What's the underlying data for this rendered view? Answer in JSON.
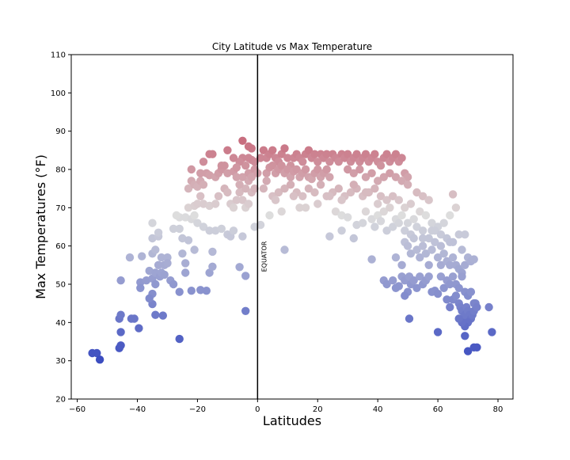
{
  "chart_data": {
    "type": "scatter",
    "title": "City Latitude vs Max Temperature",
    "xlabel": "Latitudes",
    "ylabel": "Max Temperatures (°F)",
    "xlim": [
      -62,
      85
    ],
    "ylim": [
      20,
      110
    ],
    "x_ticks": [
      -60,
      -40,
      -20,
      0,
      20,
      40,
      60,
      80
    ],
    "y_ticks": [
      20,
      30,
      40,
      50,
      60,
      70,
      80,
      90,
      100,
      110
    ],
    "x_tick_labels": [
      "−60",
      "−40",
      "−20",
      "0",
      "20",
      "40",
      "60",
      "80"
    ],
    "y_tick_labels": [
      "20",
      "30",
      "40",
      "50",
      "60",
      "70",
      "80",
      "90",
      "100",
      "110"
    ],
    "grid": false,
    "colormap": "coolwarm",
    "color_low": "#3b4cc0",
    "color_mid": "#dddddd",
    "color_high": "#b40426",
    "annotation": {
      "text": "EQUATOR",
      "x": 0
    },
    "vertical_line_color": "#000000",
    "points": [
      [
        -55,
        32
      ],
      [
        -53.5,
        32
      ],
      [
        -52.5,
        30.3
      ],
      [
        -46,
        33.3
      ],
      [
        -45.5,
        34
      ],
      [
        -46,
        41
      ],
      [
        -45.5,
        42
      ],
      [
        -45.5,
        37.5
      ],
      [
        -42,
        41
      ],
      [
        -41,
        41
      ],
      [
        -39.5,
        38.5
      ],
      [
        -34,
        42
      ],
      [
        -31.5,
        41.8
      ],
      [
        -35,
        44.8
      ],
      [
        -35,
        47.5
      ],
      [
        -36,
        46.3
      ],
      [
        -26,
        35.7
      ],
      [
        -45.5,
        51
      ],
      [
        -42.5,
        57
      ],
      [
        -39,
        50.5
      ],
      [
        -39,
        49
      ],
      [
        -38.5,
        57.3
      ],
      [
        -37,
        51
      ],
      [
        -36,
        53.5
      ],
      [
        -35,
        51.5
      ],
      [
        -34,
        50
      ],
      [
        -34,
        53
      ],
      [
        -33,
        55
      ],
      [
        -32.5,
        52
      ],
      [
        -31,
        55
      ],
      [
        -32,
        57
      ],
      [
        -32,
        53
      ],
      [
        -31,
        52.5
      ],
      [
        -30,
        57
      ],
      [
        -30,
        55.5
      ],
      [
        -29,
        51
      ],
      [
        -28,
        50
      ],
      [
        -26,
        48
      ],
      [
        -25,
        58
      ],
      [
        -24,
        55.5
      ],
      [
        -24,
        53
      ],
      [
        -22,
        48.3
      ],
      [
        -19,
        48.5
      ],
      [
        -17,
        48.3
      ],
      [
        -16,
        53
      ],
      [
        -15,
        54.6
      ],
      [
        -15,
        58.5
      ],
      [
        -21,
        59
      ],
      [
        -25,
        62
      ],
      [
        -23,
        61.5
      ],
      [
        -35,
        58
      ],
      [
        -34,
        59
      ],
      [
        -35,
        62
      ],
      [
        -33,
        62.5
      ],
      [
        -33,
        63.5
      ],
      [
        -35,
        66
      ],
      [
        -28,
        64.5
      ],
      [
        -26,
        64.5
      ],
      [
        -26,
        67.5
      ],
      [
        -27,
        68
      ],
      [
        -24,
        67.5
      ],
      [
        -22,
        67
      ],
      [
        -21,
        68
      ],
      [
        -20,
        66
      ],
      [
        -18,
        65
      ],
      [
        -16,
        64
      ],
      [
        -14,
        64
      ],
      [
        -12,
        64.5
      ],
      [
        -10,
        63
      ],
      [
        -9,
        62.5
      ],
      [
        -8,
        64
      ],
      [
        -5,
        62.5
      ],
      [
        -6,
        54.5
      ],
      [
        -4,
        52.2
      ],
      [
        -1,
        65
      ],
      [
        1,
        65.5
      ],
      [
        -4,
        43
      ],
      [
        -23,
        70
      ],
      [
        -21,
        70.5
      ],
      [
        -20,
        71
      ],
      [
        -19,
        73
      ],
      [
        -18,
        71
      ],
      [
        -16,
        70.5
      ],
      [
        -14,
        71
      ],
      [
        -13,
        73
      ],
      [
        -11,
        75
      ],
      [
        -10,
        74
      ],
      [
        -9,
        71
      ],
      [
        -8,
        70
      ],
      [
        -7,
        72
      ],
      [
        -6,
        74
      ],
      [
        -5,
        72
      ],
      [
        -4,
        70
      ],
      [
        -3,
        71
      ],
      [
        -2,
        74
      ],
      [
        -1,
        75
      ],
      [
        -3,
        77
      ],
      [
        -4,
        75
      ],
      [
        -23,
        75
      ],
      [
        -22,
        77
      ],
      [
        -21,
        76
      ],
      [
        -20,
        75.5
      ],
      [
        -19,
        77
      ],
      [
        -18,
        76
      ],
      [
        -17,
        79
      ],
      [
        -16,
        78.5
      ],
      [
        -14,
        78
      ],
      [
        -13,
        79
      ],
      [
        -12,
        80
      ],
      [
        -11,
        81
      ],
      [
        -10,
        79
      ],
      [
        -8,
        79.5
      ],
      [
        -7,
        78
      ],
      [
        -6,
        76
      ],
      [
        -5,
        78
      ],
      [
        -3,
        79
      ],
      [
        -2,
        78
      ],
      [
        -1,
        80
      ],
      [
        0,
        79
      ],
      [
        -1,
        82
      ],
      [
        -2,
        82.5
      ],
      [
        -3,
        83
      ],
      [
        -4,
        81
      ],
      [
        -5,
        83
      ],
      [
        -6,
        82
      ],
      [
        -7,
        80.5
      ],
      [
        -8,
        83
      ],
      [
        -10,
        85
      ],
      [
        -12,
        81
      ],
      [
        -15,
        84
      ],
      [
        -16,
        84
      ],
      [
        -18,
        82
      ],
      [
        -19,
        79
      ],
      [
        -22,
        80
      ],
      [
        -2,
        85.5
      ],
      [
        -3,
        86
      ],
      [
        -5,
        87.5
      ],
      [
        1,
        83
      ],
      [
        2,
        85
      ],
      [
        3,
        83
      ],
      [
        4,
        84
      ],
      [
        5,
        85
      ],
      [
        6,
        83
      ],
      [
        7,
        82
      ],
      [
        8,
        84
      ],
      [
        9,
        85.5
      ],
      [
        10,
        83
      ],
      [
        11,
        81
      ],
      [
        12,
        83
      ],
      [
        13,
        84
      ],
      [
        14,
        83
      ],
      [
        15,
        82
      ],
      [
        16,
        84
      ],
      [
        17,
        85
      ],
      [
        18,
        83
      ],
      [
        19,
        84
      ],
      [
        20,
        82
      ],
      [
        21,
        84
      ],
      [
        22,
        83
      ],
      [
        23,
        84
      ],
      [
        24,
        82
      ],
      [
        25,
        84
      ],
      [
        26,
        83
      ],
      [
        27,
        82
      ],
      [
        28,
        84
      ],
      [
        29,
        83
      ],
      [
        30,
        84
      ],
      [
        31,
        82
      ],
      [
        32,
        83
      ],
      [
        33,
        84
      ],
      [
        34,
        82
      ],
      [
        35,
        83
      ],
      [
        36,
        84
      ],
      [
        37,
        82
      ],
      [
        38,
        83
      ],
      [
        39,
        84
      ],
      [
        40,
        82
      ],
      [
        41,
        81
      ],
      [
        42,
        83
      ],
      [
        43,
        84
      ],
      [
        44,
        82
      ],
      [
        45,
        83
      ],
      [
        46,
        84
      ],
      [
        47,
        82
      ],
      [
        48,
        83
      ],
      [
        49,
        79
      ],
      [
        50,
        78
      ],
      [
        3,
        79
      ],
      [
        4,
        80.5
      ],
      [
        5,
        81
      ],
      [
        6,
        79
      ],
      [
        7,
        80
      ],
      [
        8,
        81
      ],
      [
        9,
        79
      ],
      [
        10,
        80
      ],
      [
        11,
        78
      ],
      [
        12,
        79.5
      ],
      [
        13,
        80
      ],
      [
        14,
        78
      ],
      [
        15,
        79
      ],
      [
        16,
        80
      ],
      [
        17,
        78
      ],
      [
        18,
        77.5
      ],
      [
        19,
        79
      ],
      [
        20,
        80
      ],
      [
        21,
        78
      ],
      [
        22,
        79
      ],
      [
        23,
        80
      ],
      [
        24,
        78
      ],
      [
        30,
        80
      ],
      [
        32,
        79
      ],
      [
        34,
        80
      ],
      [
        36,
        78
      ],
      [
        38,
        79
      ],
      [
        40,
        77
      ],
      [
        42,
        78
      ],
      [
        44,
        79
      ],
      [
        46,
        78
      ],
      [
        48,
        77
      ],
      [
        50,
        76
      ],
      [
        2,
        75
      ],
      [
        3,
        77
      ],
      [
        5,
        73
      ],
      [
        7,
        74
      ],
      [
        9,
        75
      ],
      [
        11,
        76
      ],
      [
        13,
        74
      ],
      [
        15,
        73
      ],
      [
        17,
        75
      ],
      [
        19,
        74
      ],
      [
        21,
        76
      ],
      [
        23,
        73
      ],
      [
        25,
        74
      ],
      [
        27,
        75
      ],
      [
        29,
        73
      ],
      [
        31,
        74
      ],
      [
        33,
        75
      ],
      [
        35,
        73
      ],
      [
        37,
        74
      ],
      [
        39,
        75
      ],
      [
        41,
        73
      ],
      [
        43,
        72
      ],
      [
        45,
        73
      ],
      [
        47,
        72
      ],
      [
        49,
        70
      ],
      [
        51,
        71
      ],
      [
        53,
        74
      ],
      [
        55,
        73
      ],
      [
        57,
        72
      ],
      [
        6,
        72
      ],
      [
        12,
        73
      ],
      [
        16,
        70
      ],
      [
        24,
        73
      ],
      [
        28,
        72
      ],
      [
        32,
        76
      ],
      [
        36,
        74
      ],
      [
        40,
        71
      ],
      [
        4,
        68
      ],
      [
        8,
        69
      ],
      [
        14,
        70
      ],
      [
        20,
        71
      ],
      [
        26,
        69
      ],
      [
        28,
        68
      ],
      [
        30,
        67.5
      ],
      [
        33,
        65.5
      ],
      [
        36,
        69
      ],
      [
        38,
        67
      ],
      [
        40,
        68
      ],
      [
        42,
        69
      ],
      [
        44,
        70
      ],
      [
        46,
        67
      ],
      [
        48,
        68
      ],
      [
        50,
        66
      ],
      [
        52,
        67
      ],
      [
        54,
        69
      ],
      [
        56,
        68
      ],
      [
        58,
        66
      ],
      [
        60,
        65
      ],
      [
        62,
        66
      ],
      [
        64,
        68
      ],
      [
        65,
        73.5
      ],
      [
        66,
        70
      ],
      [
        35,
        66
      ],
      [
        39,
        65
      ],
      [
        41,
        66.5
      ],
      [
        43,
        64
      ],
      [
        45,
        65
      ],
      [
        47,
        66
      ],
      [
        49,
        64
      ],
      [
        51,
        63
      ],
      [
        53,
        65
      ],
      [
        55,
        64
      ],
      [
        57,
        62
      ],
      [
        59,
        64
      ],
      [
        61,
        63
      ],
      [
        63,
        62
      ],
      [
        65,
        61
      ],
      [
        67,
        63
      ],
      [
        69,
        63
      ],
      [
        28,
        64
      ],
      [
        32,
        62
      ],
      [
        24,
        62.5
      ],
      [
        38,
        56.5
      ],
      [
        9,
        59
      ],
      [
        46,
        57
      ],
      [
        48,
        55
      ],
      [
        49,
        61
      ],
      [
        50,
        60
      ],
      [
        51,
        58
      ],
      [
        52,
        62
      ],
      [
        53,
        59
      ],
      [
        54,
        57
      ],
      [
        55,
        60
      ],
      [
        56,
        58
      ],
      [
        57,
        55
      ],
      [
        58,
        59
      ],
      [
        59,
        61
      ],
      [
        60,
        57
      ],
      [
        61,
        55
      ],
      [
        62,
        58
      ],
      [
        63,
        56
      ],
      [
        64,
        55
      ],
      [
        65,
        57
      ],
      [
        66,
        55
      ],
      [
        67,
        54
      ],
      [
        68,
        53
      ],
      [
        69,
        55
      ],
      [
        70,
        57
      ],
      [
        71,
        56
      ],
      [
        72,
        56.5
      ],
      [
        55,
        62
      ],
      [
        58,
        64
      ],
      [
        61,
        60
      ],
      [
        64,
        61
      ],
      [
        68,
        59
      ],
      [
        42,
        51
      ],
      [
        43,
        50
      ],
      [
        45,
        51
      ],
      [
        47,
        49.5
      ],
      [
        48,
        52
      ],
      [
        49,
        51
      ],
      [
        50,
        48
      ],
      [
        50.5,
        52
      ],
      [
        51,
        50
      ],
      [
        52,
        51
      ],
      [
        53,
        49
      ],
      [
        54,
        52
      ],
      [
        55,
        50
      ],
      [
        56,
        51
      ],
      [
        57,
        52
      ],
      [
        58,
        48
      ],
      [
        59,
        48.3
      ],
      [
        60,
        47.5
      ],
      [
        61,
        52
      ],
      [
        62,
        49
      ],
      [
        63,
        51
      ],
      [
        64,
        50
      ],
      [
        65,
        52
      ],
      [
        66,
        50
      ],
      [
        67,
        49
      ],
      [
        68,
        52
      ],
      [
        69,
        48
      ],
      [
        70,
        47
      ],
      [
        71,
        48
      ],
      [
        72,
        45
      ],
      [
        46,
        49
      ],
      [
        49,
        47
      ],
      [
        63,
        46
      ],
      [
        64,
        44
      ],
      [
        65,
        46
      ],
      [
        66,
        47
      ],
      [
        67,
        45
      ],
      [
        67.5,
        44
      ],
      [
        68,
        43
      ],
      [
        68.5,
        41
      ],
      [
        69,
        42
      ],
      [
        69.5,
        44
      ],
      [
        70,
        43
      ],
      [
        70.5,
        42
      ],
      [
        71,
        41
      ],
      [
        71.5,
        42
      ],
      [
        72,
        43
      ],
      [
        72.5,
        45
      ],
      [
        73,
        44
      ],
      [
        70,
        40
      ],
      [
        69,
        39
      ],
      [
        68,
        40
      ],
      [
        67,
        41
      ],
      [
        69,
        36.5
      ],
      [
        70,
        32.5
      ],
      [
        72,
        33.5
      ],
      [
        73,
        33.5
      ],
      [
        78,
        37.5
      ],
      [
        77,
        44
      ],
      [
        60,
        37.5
      ],
      [
        50.5,
        41
      ]
    ]
  }
}
